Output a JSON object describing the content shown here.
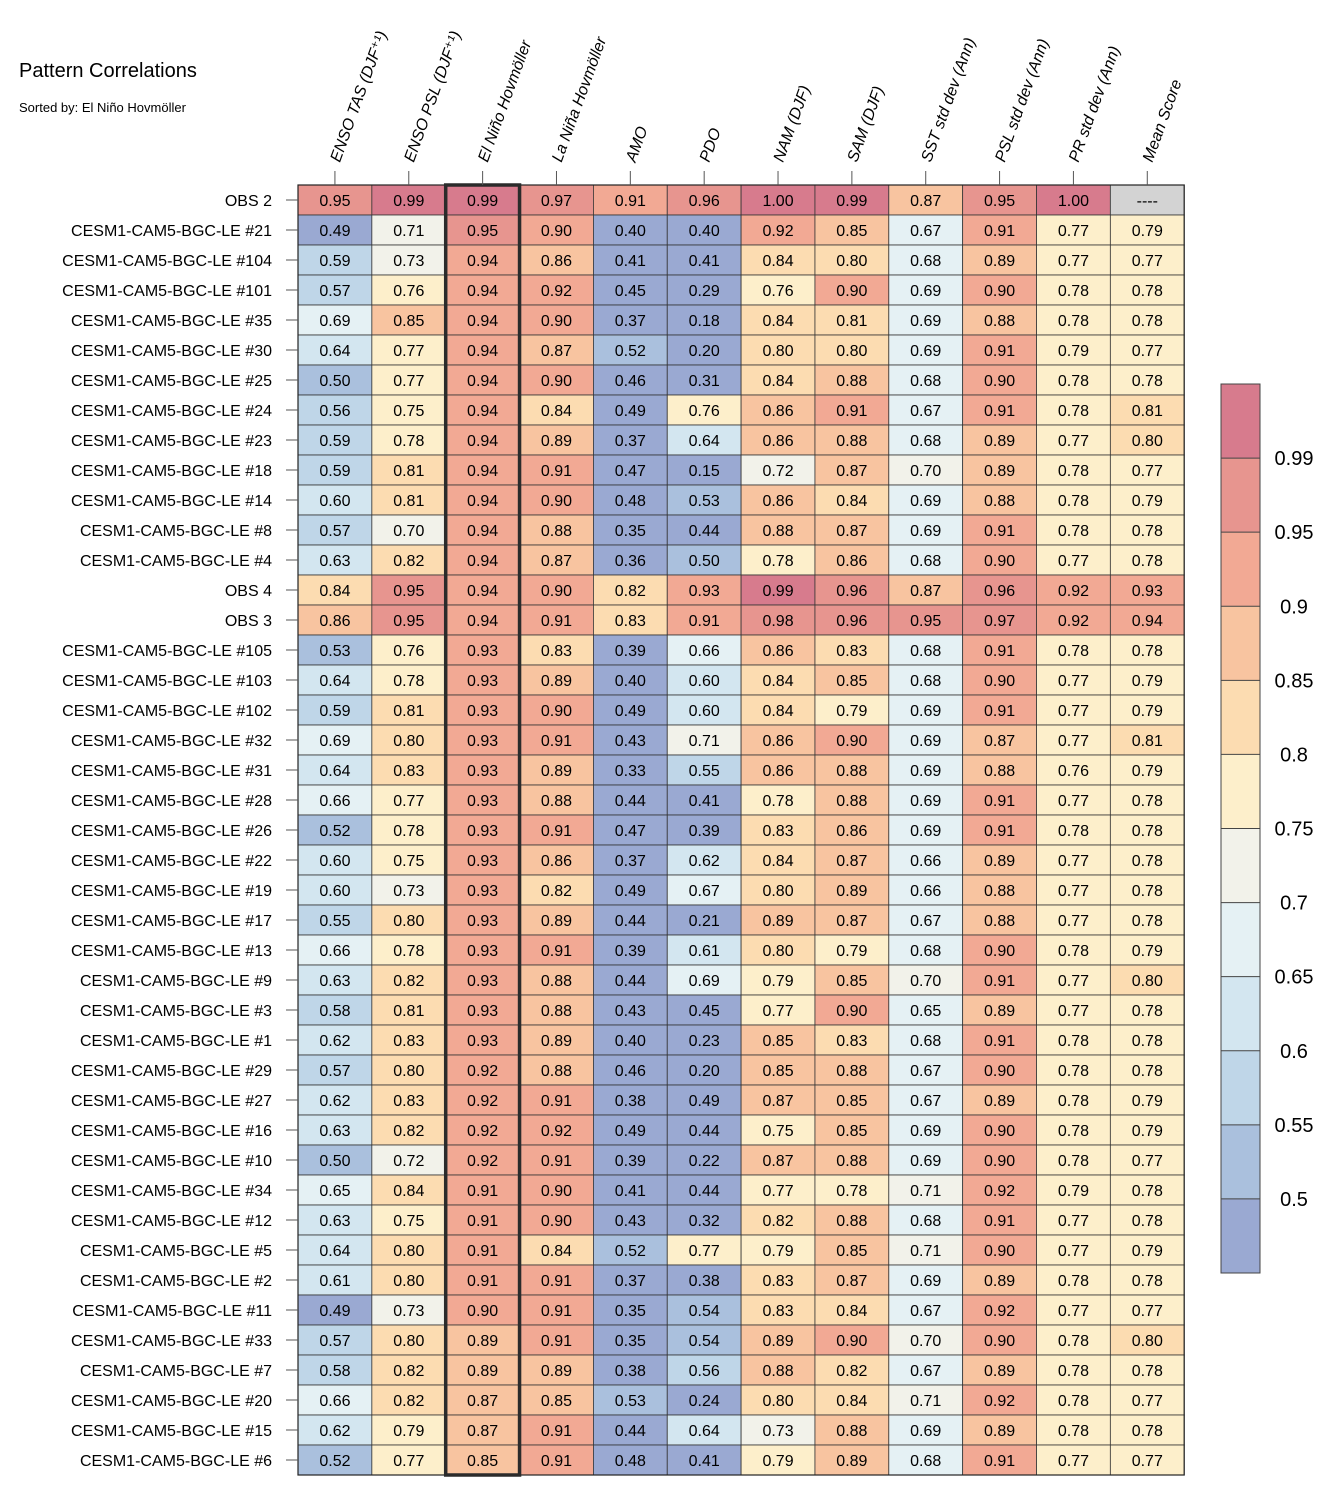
{
  "title": "Pattern Correlations",
  "subtitle": "Sorted by: El Niño Hovmöller",
  "chart_data": {
    "type": "heatmap",
    "columns": [
      "ENSO TAS (DJF⁺¹)",
      "ENSO PSL (DJF⁺¹)",
      "El Niño Hovmöller",
      "La Niña Hovmöller",
      "AMO",
      "PDO",
      "NAM (DJF)",
      "SAM (DJF)",
      "SST std dev (Ann)",
      "PSL std dev (Ann)",
      "PR std dev (Ann)",
      "Mean Score"
    ],
    "highlighted_column": "El Niño Hovmöller",
    "rows": [
      {
        "label": "OBS 2",
        "values": [
          "0.95",
          "0.99",
          "0.99",
          "0.97",
          "0.91",
          "0.96",
          "1.00",
          "0.99",
          "0.87",
          "0.95",
          "1.00",
          "----"
        ]
      },
      {
        "label": "CESM1-CAM5-BGC-LE #21",
        "values": [
          "0.49",
          "0.71",
          "0.95",
          "0.90",
          "0.40",
          "0.40",
          "0.92",
          "0.85",
          "0.67",
          "0.91",
          "0.77",
          "0.79"
        ]
      },
      {
        "label": "CESM1-CAM5-BGC-LE #104",
        "values": [
          "0.59",
          "0.73",
          "0.94",
          "0.86",
          "0.41",
          "0.41",
          "0.84",
          "0.80",
          "0.68",
          "0.89",
          "0.77",
          "0.77"
        ]
      },
      {
        "label": "CESM1-CAM5-BGC-LE #101",
        "values": [
          "0.57",
          "0.76",
          "0.94",
          "0.92",
          "0.45",
          "0.29",
          "0.76",
          "0.90",
          "0.69",
          "0.90",
          "0.78",
          "0.78"
        ]
      },
      {
        "label": "CESM1-CAM5-BGC-LE #35",
        "values": [
          "0.69",
          "0.85",
          "0.94",
          "0.90",
          "0.37",
          "0.18",
          "0.84",
          "0.81",
          "0.69",
          "0.88",
          "0.78",
          "0.78"
        ]
      },
      {
        "label": "CESM1-CAM5-BGC-LE #30",
        "values": [
          "0.64",
          "0.77",
          "0.94",
          "0.87",
          "0.52",
          "0.20",
          "0.80",
          "0.80",
          "0.69",
          "0.91",
          "0.79",
          "0.77"
        ]
      },
      {
        "label": "CESM1-CAM5-BGC-LE #25",
        "values": [
          "0.50",
          "0.77",
          "0.94",
          "0.90",
          "0.46",
          "0.31",
          "0.84",
          "0.88",
          "0.68",
          "0.90",
          "0.78",
          "0.78"
        ]
      },
      {
        "label": "CESM1-CAM5-BGC-LE #24",
        "values": [
          "0.56",
          "0.75",
          "0.94",
          "0.84",
          "0.49",
          "0.76",
          "0.86",
          "0.91",
          "0.67",
          "0.91",
          "0.78",
          "0.81"
        ]
      },
      {
        "label": "CESM1-CAM5-BGC-LE #23",
        "values": [
          "0.59",
          "0.78",
          "0.94",
          "0.89",
          "0.37",
          "0.64",
          "0.86",
          "0.88",
          "0.68",
          "0.89",
          "0.77",
          "0.80"
        ]
      },
      {
        "label": "CESM1-CAM5-BGC-LE #18",
        "values": [
          "0.59",
          "0.81",
          "0.94",
          "0.91",
          "0.47",
          "0.15",
          "0.72",
          "0.87",
          "0.70",
          "0.89",
          "0.78",
          "0.77"
        ]
      },
      {
        "label": "CESM1-CAM5-BGC-LE #14",
        "values": [
          "0.60",
          "0.81",
          "0.94",
          "0.90",
          "0.48",
          "0.53",
          "0.86",
          "0.84",
          "0.69",
          "0.88",
          "0.78",
          "0.79"
        ]
      },
      {
        "label": "CESM1-CAM5-BGC-LE #8",
        "values": [
          "0.57",
          "0.70",
          "0.94",
          "0.88",
          "0.35",
          "0.44",
          "0.88",
          "0.87",
          "0.69",
          "0.91",
          "0.78",
          "0.78"
        ]
      },
      {
        "label": "CESM1-CAM5-BGC-LE #4",
        "values": [
          "0.63",
          "0.82",
          "0.94",
          "0.87",
          "0.36",
          "0.50",
          "0.78",
          "0.86",
          "0.68",
          "0.90",
          "0.77",
          "0.78"
        ]
      },
      {
        "label": "OBS 4",
        "values": [
          "0.84",
          "0.95",
          "0.94",
          "0.90",
          "0.82",
          "0.93",
          "0.99",
          "0.96",
          "0.87",
          "0.96",
          "0.92",
          "0.93"
        ]
      },
      {
        "label": "OBS 3",
        "values": [
          "0.86",
          "0.95",
          "0.94",
          "0.91",
          "0.83",
          "0.91",
          "0.98",
          "0.96",
          "0.95",
          "0.97",
          "0.92",
          "0.94"
        ]
      },
      {
        "label": "CESM1-CAM5-BGC-LE #105",
        "values": [
          "0.53",
          "0.76",
          "0.93",
          "0.83",
          "0.39",
          "0.66",
          "0.86",
          "0.83",
          "0.68",
          "0.91",
          "0.78",
          "0.78"
        ]
      },
      {
        "label": "CESM1-CAM5-BGC-LE #103",
        "values": [
          "0.64",
          "0.78",
          "0.93",
          "0.89",
          "0.40",
          "0.60",
          "0.84",
          "0.85",
          "0.68",
          "0.90",
          "0.77",
          "0.79"
        ]
      },
      {
        "label": "CESM1-CAM5-BGC-LE #102",
        "values": [
          "0.59",
          "0.81",
          "0.93",
          "0.90",
          "0.49",
          "0.60",
          "0.84",
          "0.79",
          "0.69",
          "0.91",
          "0.77",
          "0.79"
        ]
      },
      {
        "label": "CESM1-CAM5-BGC-LE #32",
        "values": [
          "0.69",
          "0.80",
          "0.93",
          "0.91",
          "0.43",
          "0.71",
          "0.86",
          "0.90",
          "0.69",
          "0.87",
          "0.77",
          "0.81"
        ]
      },
      {
        "label": "CESM1-CAM5-BGC-LE #31",
        "values": [
          "0.64",
          "0.83",
          "0.93",
          "0.89",
          "0.33",
          "0.55",
          "0.86",
          "0.88",
          "0.69",
          "0.88",
          "0.76",
          "0.79"
        ]
      },
      {
        "label": "CESM1-CAM5-BGC-LE #28",
        "values": [
          "0.66",
          "0.77",
          "0.93",
          "0.88",
          "0.44",
          "0.41",
          "0.78",
          "0.88",
          "0.69",
          "0.91",
          "0.77",
          "0.78"
        ]
      },
      {
        "label": "CESM1-CAM5-BGC-LE #26",
        "values": [
          "0.52",
          "0.78",
          "0.93",
          "0.91",
          "0.47",
          "0.39",
          "0.83",
          "0.86",
          "0.69",
          "0.91",
          "0.78",
          "0.78"
        ]
      },
      {
        "label": "CESM1-CAM5-BGC-LE #22",
        "values": [
          "0.60",
          "0.75",
          "0.93",
          "0.86",
          "0.37",
          "0.62",
          "0.84",
          "0.87",
          "0.66",
          "0.89",
          "0.77",
          "0.78"
        ]
      },
      {
        "label": "CESM1-CAM5-BGC-LE #19",
        "values": [
          "0.60",
          "0.73",
          "0.93",
          "0.82",
          "0.49",
          "0.67",
          "0.80",
          "0.89",
          "0.66",
          "0.88",
          "0.77",
          "0.78"
        ]
      },
      {
        "label": "CESM1-CAM5-BGC-LE #17",
        "values": [
          "0.55",
          "0.80",
          "0.93",
          "0.89",
          "0.44",
          "0.21",
          "0.89",
          "0.87",
          "0.67",
          "0.88",
          "0.77",
          "0.78"
        ]
      },
      {
        "label": "CESM1-CAM5-BGC-LE #13",
        "values": [
          "0.66",
          "0.78",
          "0.93",
          "0.91",
          "0.39",
          "0.61",
          "0.80",
          "0.79",
          "0.68",
          "0.90",
          "0.78",
          "0.79"
        ]
      },
      {
        "label": "CESM1-CAM5-BGC-LE #9",
        "values": [
          "0.63",
          "0.82",
          "0.93",
          "0.88",
          "0.44",
          "0.69",
          "0.79",
          "0.85",
          "0.70",
          "0.91",
          "0.77",
          "0.80"
        ]
      },
      {
        "label": "CESM1-CAM5-BGC-LE #3",
        "values": [
          "0.58",
          "0.81",
          "0.93",
          "0.88",
          "0.43",
          "0.45",
          "0.77",
          "0.90",
          "0.65",
          "0.89",
          "0.77",
          "0.78"
        ]
      },
      {
        "label": "CESM1-CAM5-BGC-LE #1",
        "values": [
          "0.62",
          "0.83",
          "0.93",
          "0.89",
          "0.40",
          "0.23",
          "0.85",
          "0.83",
          "0.68",
          "0.91",
          "0.78",
          "0.78"
        ]
      },
      {
        "label": "CESM1-CAM5-BGC-LE #29",
        "values": [
          "0.57",
          "0.80",
          "0.92",
          "0.88",
          "0.46",
          "0.20",
          "0.85",
          "0.88",
          "0.67",
          "0.90",
          "0.78",
          "0.78"
        ]
      },
      {
        "label": "CESM1-CAM5-BGC-LE #27",
        "values": [
          "0.62",
          "0.83",
          "0.92",
          "0.91",
          "0.38",
          "0.49",
          "0.87",
          "0.85",
          "0.67",
          "0.89",
          "0.78",
          "0.79"
        ]
      },
      {
        "label": "CESM1-CAM5-BGC-LE #16",
        "values": [
          "0.63",
          "0.82",
          "0.92",
          "0.92",
          "0.49",
          "0.44",
          "0.75",
          "0.85",
          "0.69",
          "0.90",
          "0.78",
          "0.79"
        ]
      },
      {
        "label": "CESM1-CAM5-BGC-LE #10",
        "values": [
          "0.50",
          "0.72",
          "0.92",
          "0.91",
          "0.39",
          "0.22",
          "0.87",
          "0.88",
          "0.69",
          "0.90",
          "0.78",
          "0.77"
        ]
      },
      {
        "label": "CESM1-CAM5-BGC-LE #34",
        "values": [
          "0.65",
          "0.84",
          "0.91",
          "0.90",
          "0.41",
          "0.44",
          "0.77",
          "0.78",
          "0.71",
          "0.92",
          "0.79",
          "0.78"
        ]
      },
      {
        "label": "CESM1-CAM5-BGC-LE #12",
        "values": [
          "0.63",
          "0.75",
          "0.91",
          "0.90",
          "0.43",
          "0.32",
          "0.82",
          "0.88",
          "0.68",
          "0.91",
          "0.77",
          "0.78"
        ]
      },
      {
        "label": "CESM1-CAM5-BGC-LE #5",
        "values": [
          "0.64",
          "0.80",
          "0.91",
          "0.84",
          "0.52",
          "0.77",
          "0.79",
          "0.85",
          "0.71",
          "0.90",
          "0.77",
          "0.79"
        ]
      },
      {
        "label": "CESM1-CAM5-BGC-LE #2",
        "values": [
          "0.61",
          "0.80",
          "0.91",
          "0.91",
          "0.37",
          "0.38",
          "0.83",
          "0.87",
          "0.69",
          "0.89",
          "0.78",
          "0.78"
        ]
      },
      {
        "label": "CESM1-CAM5-BGC-LE #11",
        "values": [
          "0.49",
          "0.73",
          "0.90",
          "0.91",
          "0.35",
          "0.54",
          "0.83",
          "0.84",
          "0.67",
          "0.92",
          "0.77",
          "0.77"
        ]
      },
      {
        "label": "CESM1-CAM5-BGC-LE #33",
        "values": [
          "0.57",
          "0.80",
          "0.89",
          "0.91",
          "0.35",
          "0.54",
          "0.89",
          "0.90",
          "0.70",
          "0.90",
          "0.78",
          "0.80"
        ]
      },
      {
        "label": "CESM1-CAM5-BGC-LE #7",
        "values": [
          "0.58",
          "0.82",
          "0.89",
          "0.89",
          "0.38",
          "0.56",
          "0.88",
          "0.82",
          "0.67",
          "0.89",
          "0.78",
          "0.78"
        ]
      },
      {
        "label": "CESM1-CAM5-BGC-LE #20",
        "values": [
          "0.66",
          "0.82",
          "0.87",
          "0.85",
          "0.53",
          "0.24",
          "0.80",
          "0.84",
          "0.71",
          "0.92",
          "0.78",
          "0.77"
        ]
      },
      {
        "label": "CESM1-CAM5-BGC-LE #15",
        "values": [
          "0.62",
          "0.79",
          "0.87",
          "0.91",
          "0.44",
          "0.64",
          "0.73",
          "0.88",
          "0.69",
          "0.89",
          "0.78",
          "0.78"
        ]
      },
      {
        "label": "CESM1-CAM5-BGC-LE #6",
        "values": [
          "0.52",
          "0.77",
          "0.85",
          "0.91",
          "0.48",
          "0.41",
          "0.79",
          "0.89",
          "0.68",
          "0.91",
          "0.77",
          "0.77"
        ]
      }
    ],
    "colorbar": {
      "tick_labels": [
        "0.99",
        "0.95",
        "0.9",
        "0.85",
        "0.8",
        "0.75",
        "0.7",
        "0.65",
        "0.6",
        "0.55",
        "0.5"
      ],
      "levels": [
        0.5,
        0.55,
        0.6,
        0.65,
        0.7,
        0.75,
        0.8,
        0.85,
        0.9,
        0.95,
        0.99
      ],
      "colors": [
        "#9aa9d2",
        "#aac0dd",
        "#bfd6e8",
        "#d3e6f0",
        "#e5f1f4",
        "#f2f2ea",
        "#fdefcb",
        "#fcdcb1",
        "#f8c4a0",
        "#f2a994",
        "#e7958f",
        "#d77b8d"
      ],
      "missing_color": "#d3d3d3"
    }
  }
}
